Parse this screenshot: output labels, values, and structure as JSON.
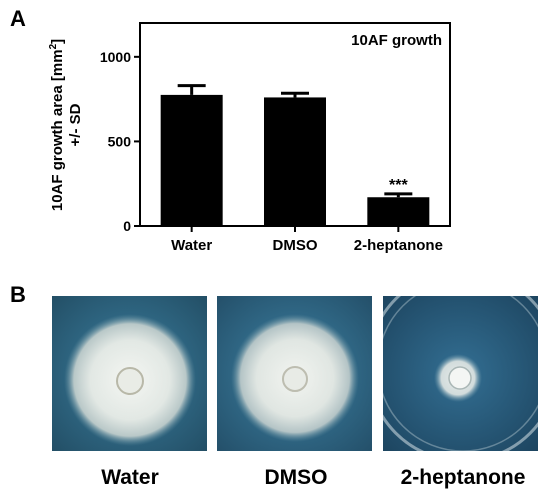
{
  "panel_a_letter": "A",
  "panel_b_letter": "B",
  "chart_data": {
    "type": "bar",
    "title": "10AF growth",
    "ylabel_line1": "10AF growth area [mm",
    "ylabel_sup": "2",
    "ylabel_line1_end": "]",
    "ylabel_line2": "+/- SD",
    "categories": [
      "Water",
      "DMSO",
      "2-heptanone"
    ],
    "values": [
      775,
      760,
      170
    ],
    "errors": [
      55,
      25,
      20
    ],
    "annotations": [
      "",
      "",
      "***"
    ],
    "ylim": [
      0,
      1200
    ],
    "yticks": [
      0,
      500,
      1000
    ],
    "bar_color": "#000000",
    "grid": false
  },
  "photos": [
    {
      "label": "Water",
      "colony": "large-white"
    },
    {
      "label": "DMSO",
      "colony": "large-white"
    },
    {
      "label": "2-heptanone",
      "colony": "small-inhibited"
    }
  ],
  "colors": {
    "agar_blue": "#2f6f8f",
    "colony_white": "#e8eeee"
  }
}
